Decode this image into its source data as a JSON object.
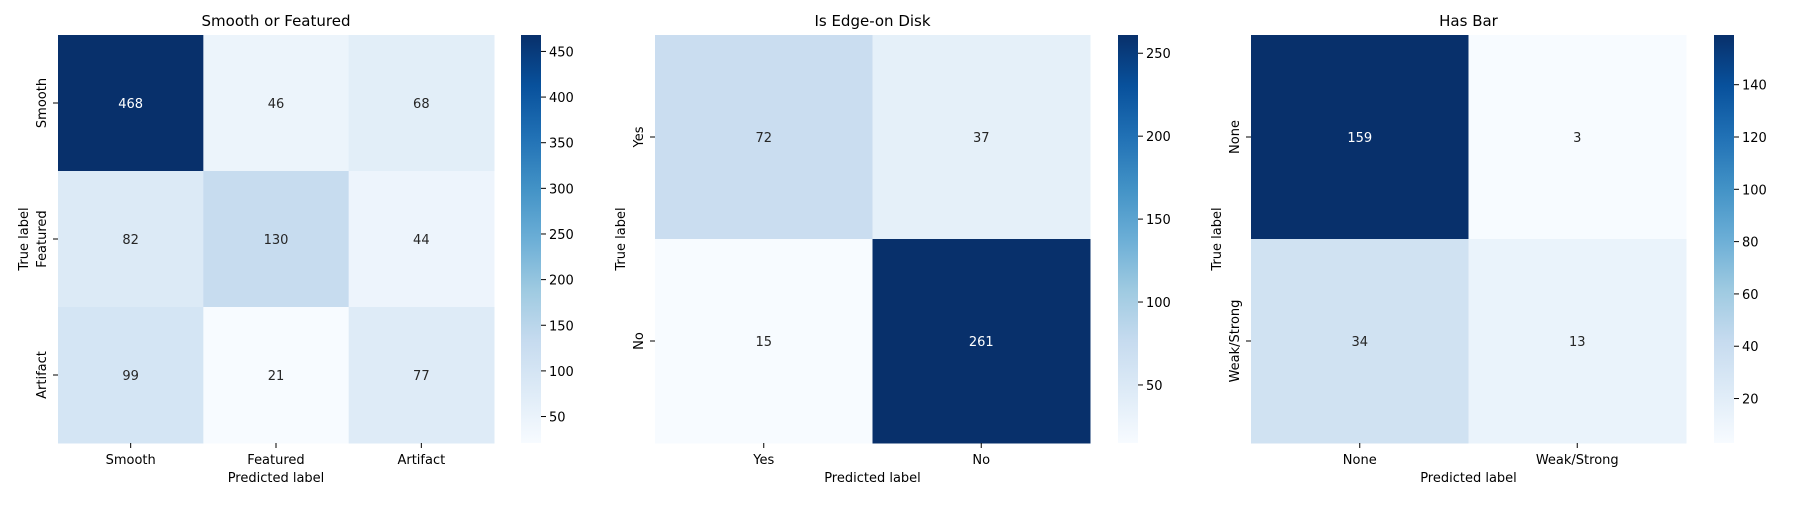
{
  "chart_data": [
    {
      "type": "heatmap",
      "title": "Smooth or Featured",
      "xlabel": "Predicted label",
      "ylabel": "True label",
      "x_categories": [
        "Smooth",
        "Featured",
        "Artifact"
      ],
      "y_categories": [
        "Smooth",
        "Featured",
        "Artifact"
      ],
      "values": [
        [
          468,
          46,
          68
        ],
        [
          82,
          130,
          44
        ],
        [
          99,
          21,
          77
        ]
      ],
      "colormap": "Blues",
      "colorbar_range": [
        21,
        468
      ],
      "colorbar_ticks": [
        50,
        100,
        150,
        200,
        250,
        300,
        350,
        400,
        450
      ]
    },
    {
      "type": "heatmap",
      "title": "Is Edge-on Disk",
      "xlabel": "Predicted label",
      "ylabel": "True label",
      "x_categories": [
        "Yes",
        "No"
      ],
      "y_categories": [
        "Yes",
        "No"
      ],
      "values": [
        [
          72,
          37
        ],
        [
          15,
          261
        ]
      ],
      "colormap": "Blues",
      "colorbar_range": [
        15,
        261
      ],
      "colorbar_ticks": [
        50,
        100,
        150,
        200,
        250
      ]
    },
    {
      "type": "heatmap",
      "title": "Has Bar",
      "xlabel": "Predicted label",
      "ylabel": "True label",
      "x_categories": [
        "None",
        "Weak/Strong"
      ],
      "y_categories": [
        "None",
        "Weak/Strong"
      ],
      "values": [
        [
          159,
          3
        ],
        [
          34,
          13
        ]
      ],
      "colormap": "Blues",
      "colorbar_range": [
        3,
        159
      ],
      "colorbar_ticks": [
        20,
        40,
        60,
        80,
        100,
        120,
        140
      ]
    }
  ],
  "colors": {
    "colormap_stops": [
      "#f7fbff",
      "#deebf7",
      "#c6dbef",
      "#9ecae1",
      "#6baed6",
      "#4292c6",
      "#2171b5",
      "#08519c",
      "#08306b"
    ]
  }
}
